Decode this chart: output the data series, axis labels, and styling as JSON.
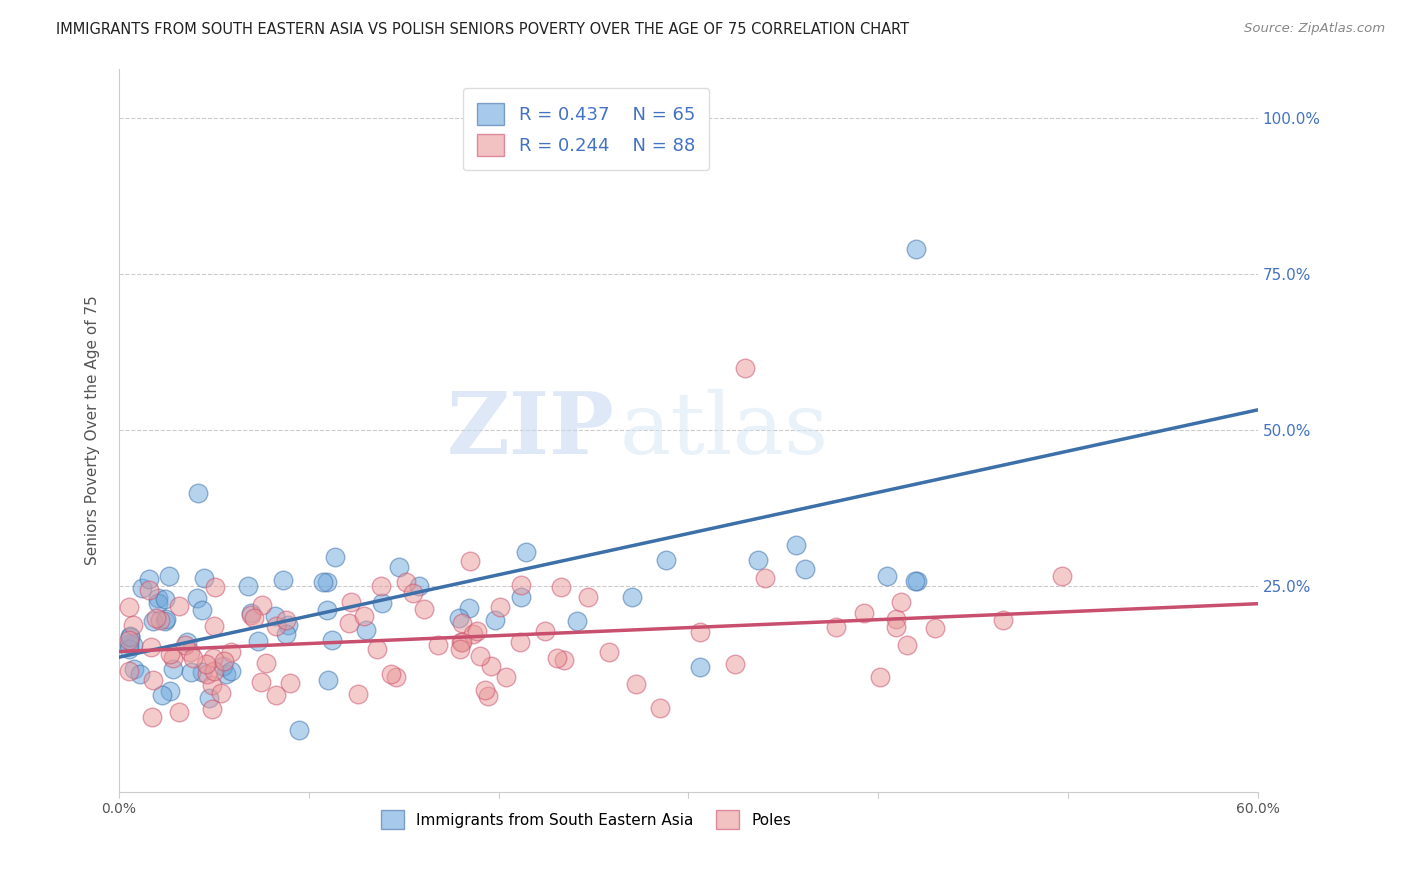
{
  "title": "IMMIGRANTS FROM SOUTH EASTERN ASIA VS POLISH SENIORS POVERTY OVER THE AGE OF 75 CORRELATION CHART",
  "source": "Source: ZipAtlas.com",
  "ylabel": "Seniors Poverty Over the Age of 75",
  "xlim": [
    0.0,
    0.6
  ],
  "ylim": [
    -0.08,
    1.08
  ],
  "blue_color": "#6fa8dc",
  "pink_color": "#ea9999",
  "blue_line_color": "#3d6fa8",
  "pink_line_color": "#c94f6e",
  "dashed_line_color": "#aaaaaa",
  "legend_blue_r": "R = 0.437",
  "legend_blue_n": "N = 65",
  "legend_pink_r": "R = 0.244",
  "legend_pink_n": "N = 88",
  "watermark_zip": "ZIP",
  "watermark_atlas": "atlas",
  "background_color": "#ffffff",
  "grid_color": "#cccccc",
  "right_tick_color": "#4472c4"
}
